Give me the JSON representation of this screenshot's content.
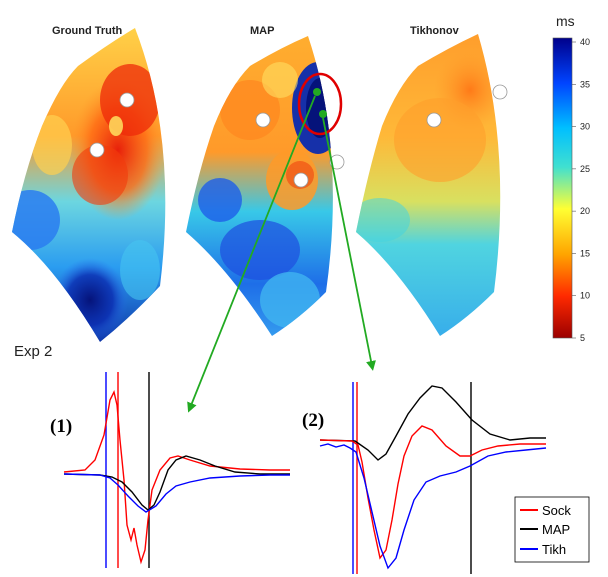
{
  "maps": {
    "titles": [
      "Ground Truth",
      "MAP",
      "Tikhonov"
    ],
    "experiment_label": "Exp 2"
  },
  "colorbar": {
    "unit": "ms",
    "ticks": [
      "40",
      "35",
      "30",
      "25",
      "20",
      "15",
      "10",
      "5"
    ],
    "colors": [
      "#00008b",
      "#0044ff",
      "#00bfff",
      "#40e0d0",
      "#ffff33",
      "#ffa500",
      "#ff2a00",
      "#9b0000"
    ]
  },
  "panels": {
    "panel1_label": "(1)",
    "panel2_label": "(2)"
  },
  "legend": {
    "items": [
      {
        "label": "Sock",
        "color": "#ff0000"
      },
      {
        "label": "MAP",
        "color": "#000000"
      },
      {
        "label": "Tikh",
        "color": "#0000ff"
      }
    ]
  },
  "annotation_colors": {
    "circle": "#e00000",
    "arrow": "#22aa22",
    "marker": "#ffffff"
  }
}
